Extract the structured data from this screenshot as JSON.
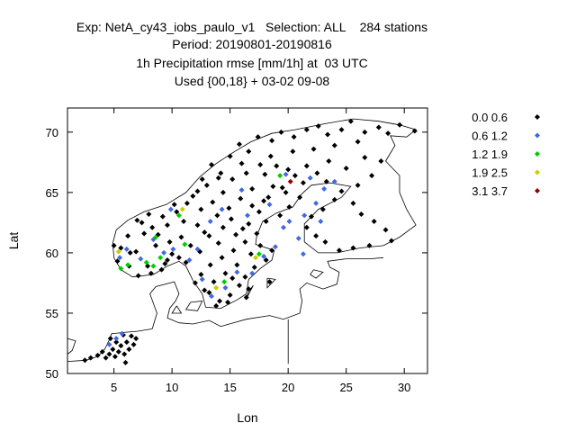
{
  "titles": {
    "line1": "Exp: NetA_cy43_iobs_paulo_v1   Selection: ALL    284 stations",
    "line2": "Period: 20190801-20190816",
    "line3": "1h Precipitation rmse [mm/1h] at  03 UTC",
    "line4": "Used {00,18} + 03-02 09-08"
  },
  "chart_data": {
    "type": "scatter",
    "xlabel": "Lon",
    "ylabel": "Lat",
    "xlim": [
      1,
      32
    ],
    "ylim": [
      50,
      72
    ],
    "xticks": [
      5,
      10,
      15,
      20,
      25,
      30
    ],
    "yticks": [
      50,
      55,
      60,
      65,
      70
    ],
    "grid": false,
    "legend_position": "right",
    "series": [
      {
        "name": "0.0 0.6",
        "color": "#000000",
        "points": [
          [
            2.5,
            51.1
          ],
          [
            3.0,
            51.3
          ],
          [
            3.6,
            51.5
          ],
          [
            4.0,
            51.8
          ],
          [
            4.3,
            51.3
          ],
          [
            4.6,
            51.6
          ],
          [
            4.9,
            52.0
          ],
          [
            5.1,
            51.4
          ],
          [
            5.4,
            51.8
          ],
          [
            5.6,
            52.3
          ],
          [
            5.9,
            51.6
          ],
          [
            6.1,
            52.6
          ],
          [
            6.3,
            52.0
          ],
          [
            6.5,
            53.1
          ],
          [
            6.7,
            52.4
          ],
          [
            6.9,
            52.9
          ],
          [
            5.8,
            53.2
          ],
          [
            6.0,
            50.9
          ],
          [
            4.7,
            52.9
          ],
          [
            5.2,
            52.6
          ],
          [
            5.3,
            59.3
          ],
          [
            5.6,
            60.4
          ],
          [
            5.0,
            60.6
          ],
          [
            6.2,
            61.4
          ],
          [
            6.9,
            60.1
          ],
          [
            7.4,
            62.5
          ],
          [
            8.0,
            63.2
          ],
          [
            8.8,
            61.5
          ],
          [
            9.6,
            62.3
          ],
          [
            10.4,
            63.4
          ],
          [
            11.0,
            62.6
          ],
          [
            10.0,
            59.9
          ],
          [
            9.4,
            59.1
          ],
          [
            8.2,
            58.3
          ],
          [
            7.1,
            58.1
          ],
          [
            6.3,
            58.9
          ],
          [
            11.3,
            64.1
          ],
          [
            12.2,
            65.1
          ],
          [
            12.6,
            66.1
          ],
          [
            13.4,
            67.3
          ],
          [
            14.2,
            66.6
          ],
          [
            15.0,
            68.0
          ],
          [
            15.8,
            69.0
          ],
          [
            16.6,
            68.4
          ],
          [
            17.4,
            69.6
          ],
          [
            18.6,
            69.3
          ],
          [
            19.4,
            70.0
          ],
          [
            20.5,
            69.6
          ],
          [
            21.6,
            70.2
          ],
          [
            22.6,
            70.5
          ],
          [
            23.4,
            69.8
          ],
          [
            24.6,
            70.2
          ],
          [
            25.4,
            70.9
          ],
          [
            26.6,
            70.0
          ],
          [
            27.8,
            70.4
          ],
          [
            28.6,
            69.9
          ],
          [
            29.6,
            70.6
          ],
          [
            30.9,
            70.1
          ],
          [
            26.0,
            69.2
          ],
          [
            24.0,
            68.9
          ],
          [
            22.2,
            68.6
          ],
          [
            20.4,
            68.4
          ],
          [
            18.5,
            68.0
          ],
          [
            17.6,
            67.3
          ],
          [
            16.4,
            66.6
          ],
          [
            15.2,
            66.1
          ],
          [
            14.4,
            65.0
          ],
          [
            13.5,
            64.2
          ],
          [
            12.5,
            63.6
          ],
          [
            12.2,
            62.3
          ],
          [
            13.2,
            61.4
          ],
          [
            14.4,
            62.1
          ],
          [
            15.5,
            61.5
          ],
          [
            16.6,
            62.4
          ],
          [
            17.5,
            63.4
          ],
          [
            18.3,
            64.6
          ],
          [
            19.5,
            65.4
          ],
          [
            20.6,
            66.4
          ],
          [
            21.6,
            67.2
          ],
          [
            22.5,
            66.6
          ],
          [
            23.3,
            65.9
          ],
          [
            24.6,
            65.1
          ],
          [
            25.6,
            64.1
          ],
          [
            26.3,
            63.2
          ],
          [
            27.4,
            62.6
          ],
          [
            28.4,
            61.9
          ],
          [
            28.9,
            61.0
          ],
          [
            27.0,
            60.6
          ],
          [
            25.6,
            60.4
          ],
          [
            24.4,
            60.2
          ],
          [
            23.2,
            60.9
          ],
          [
            22.4,
            61.4
          ],
          [
            21.6,
            62.1
          ],
          [
            22.0,
            63.0
          ],
          [
            23.0,
            63.6
          ],
          [
            24.0,
            64.4
          ],
          [
            26.0,
            65.6
          ],
          [
            27.2,
            66.4
          ],
          [
            28.0,
            67.6
          ],
          [
            26.6,
            67.9
          ],
          [
            25.0,
            67.0
          ],
          [
            23.5,
            67.6
          ],
          [
            21.0,
            64.6
          ],
          [
            20.1,
            63.8
          ],
          [
            19.3,
            63.1
          ],
          [
            18.1,
            62.6
          ],
          [
            17.3,
            61.6
          ],
          [
            16.3,
            60.9
          ],
          [
            15.3,
            60.2
          ],
          [
            14.3,
            59.6
          ],
          [
            13.3,
            59.0
          ],
          [
            12.5,
            58.2
          ],
          [
            12.0,
            57.5
          ],
          [
            13.2,
            56.7
          ],
          [
            14.1,
            56.0
          ],
          [
            15.0,
            56.5
          ],
          [
            15.8,
            57.3
          ],
          [
            16.3,
            58.0
          ],
          [
            17.1,
            58.8
          ],
          [
            18.1,
            59.4
          ],
          [
            18.6,
            60.2
          ],
          [
            17.6,
            60.6
          ],
          [
            16.8,
            59.9
          ],
          [
            15.6,
            59.0
          ],
          [
            14.6,
            58.3
          ],
          [
            13.6,
            57.6
          ],
          [
            12.8,
            56.9
          ],
          [
            13.8,
            55.6
          ],
          [
            14.8,
            55.9
          ],
          [
            16.4,
            56.3
          ],
          [
            15.2,
            57.9
          ],
          [
            16.6,
            57.0
          ],
          [
            18.4,
            57.6
          ],
          [
            10.6,
            59.6
          ],
          [
            11.2,
            59.2
          ],
          [
            9.1,
            58.6
          ],
          [
            7.9,
            58.9
          ],
          [
            8.6,
            60.6
          ],
          [
            9.8,
            60.9
          ],
          [
            10.8,
            61.3
          ],
          [
            11.6,
            60.6
          ],
          [
            12.4,
            60.1
          ],
          [
            7.6,
            61.6
          ],
          [
            8.3,
            62.1
          ],
          [
            9.2,
            63.0
          ],
          [
            10.2,
            64.0
          ],
          [
            11.8,
            64.7
          ],
          [
            13.0,
            65.6
          ],
          [
            14.0,
            66.2
          ],
          [
            16.0,
            67.4
          ],
          [
            18.0,
            66.5
          ],
          [
            19.0,
            67.2
          ],
          [
            20.0,
            66.9
          ],
          [
            21.3,
            65.8
          ],
          [
            19.8,
            65.0
          ],
          [
            18.7,
            65.5
          ],
          [
            16.9,
            65.3
          ],
          [
            15.9,
            64.5
          ],
          [
            14.9,
            63.7
          ],
          [
            13.9,
            63.1
          ],
          [
            15.1,
            62.8
          ],
          [
            16.9,
            63.9
          ],
          [
            17.9,
            64.3
          ],
          [
            16.1,
            62.0
          ],
          [
            14.0,
            60.8
          ],
          [
            12.8,
            61.7
          ],
          [
            9.6,
            59.4
          ],
          [
            7.0,
            62.7
          ],
          [
            6.4,
            60.0
          ]
        ]
      },
      {
        "name": "0.6 1.2",
        "color": "#4169e1",
        "points": [
          [
            4.6,
            52.4
          ],
          [
            5.2,
            52.9
          ],
          [
            5.7,
            53.3
          ],
          [
            5.5,
            59.6
          ],
          [
            6.1,
            60.3
          ],
          [
            7.3,
            59.5
          ],
          [
            8.4,
            61.1
          ],
          [
            9.3,
            60.0
          ],
          [
            10.1,
            60.3
          ],
          [
            11.5,
            59.4
          ],
          [
            12.6,
            57.8
          ],
          [
            13.4,
            56.4
          ],
          [
            14.6,
            57.1
          ],
          [
            15.6,
            58.4
          ],
          [
            16.9,
            58.3
          ],
          [
            17.9,
            59.7
          ],
          [
            20.1,
            62.6
          ],
          [
            21.4,
            63.1
          ],
          [
            22.4,
            64.1
          ],
          [
            23.1,
            65.3
          ],
          [
            24.0,
            65.9
          ],
          [
            21.9,
            66.2
          ],
          [
            19.6,
            62.1
          ],
          [
            20.9,
            61.2
          ],
          [
            22.8,
            62.6
          ],
          [
            16.5,
            63.1
          ],
          [
            18.4,
            64.0
          ],
          [
            9.9,
            63.6
          ],
          [
            14.3,
            63.6
          ],
          [
            21.3,
            59.9
          ],
          [
            18.9,
            60.5
          ],
          [
            12.2,
            60.3
          ],
          [
            13.3,
            62.6
          ],
          [
            16.0,
            65.2
          ],
          [
            19.8,
            66.5
          ]
        ]
      },
      {
        "name": "1.2 1.9",
        "color": "#00cc00",
        "points": [
          [
            5.6,
            58.7
          ],
          [
            6.2,
            59.0
          ],
          [
            7.8,
            59.2
          ],
          [
            8.4,
            58.9
          ],
          [
            9.0,
            59.6
          ],
          [
            8.6,
            61.3
          ],
          [
            10.6,
            63.1
          ],
          [
            11.1,
            60.7
          ],
          [
            14.5,
            57.6
          ],
          [
            17.5,
            59.9
          ],
          [
            19.3,
            66.4
          ]
        ]
      },
      {
        "name": "1.9 2.5",
        "color": "#cccc00",
        "points": [
          [
            5.4,
            60.1
          ],
          [
            10.9,
            63.6
          ],
          [
            13.8,
            57.1
          ],
          [
            17.2,
            59.6
          ]
        ]
      },
      {
        "name": "3.1 3.7",
        "color": "#990000",
        "points": [
          [
            20.2,
            65.9
          ]
        ]
      }
    ]
  }
}
